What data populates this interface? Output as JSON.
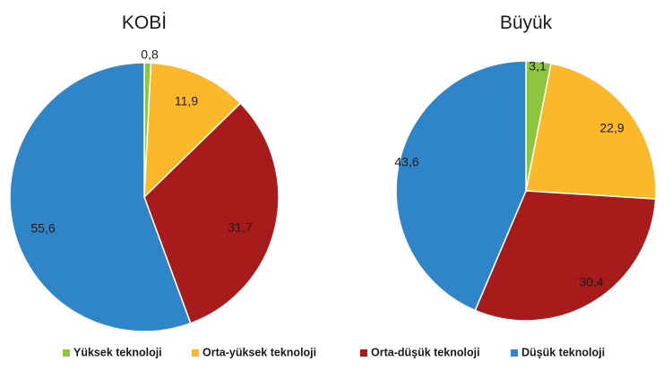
{
  "chart_data": [
    {
      "type": "pie",
      "title": "KOBİ",
      "categories": [
        "Yüksek teknoloji",
        "Orta-yüksek teknoloji",
        "Orta-düşük teknoloji",
        "Düşük teknoloji"
      ],
      "values": [
        0.8,
        11.9,
        31.7,
        55.6
      ],
      "labels": [
        "0,8",
        "11,9",
        "31,7",
        "55,6"
      ]
    },
    {
      "type": "pie",
      "title": "Büyük",
      "categories": [
        "Yüksek teknoloji",
        "Orta-yüksek teknoloji",
        "Orta-düşük teknoloji",
        "Düşük teknoloji"
      ],
      "values": [
        3.1,
        22.9,
        30.4,
        43.6
      ],
      "labels": [
        "3,1",
        "22,9",
        "30,4",
        "43,6"
      ]
    }
  ],
  "legend": {
    "placement": "bottom",
    "items": [
      {
        "label": "Yüksek teknoloji",
        "color": "#8dc63f"
      },
      {
        "label": "Orta-yüksek teknoloji",
        "color": "#fbb829"
      },
      {
        "label": "Orta-düşük teknoloji",
        "color": "#a81b1b"
      },
      {
        "label": "Düşük teknoloji",
        "color": "#2e86c9"
      }
    ]
  }
}
